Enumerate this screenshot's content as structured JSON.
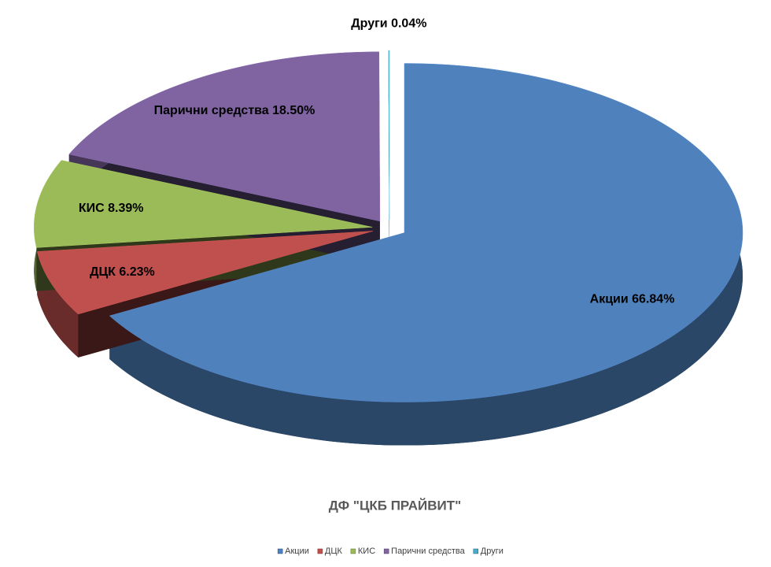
{
  "chart_data": {
    "type": "pie",
    "title": "ДФ \"ЦКБ ПРАЙВИТ\"",
    "categories": [
      "Акции",
      "ДЦК",
      "КИС",
      "Парични средства",
      "Други"
    ],
    "values": [
      66.84,
      6.23,
      8.39,
      18.5,
      0.04
    ],
    "value_labels": [
      "Акции 66.84%",
      "ДЦК 6.23%",
      "КИС 8.39%",
      "Парични средства 18.50%",
      "Други 0.04%"
    ],
    "colors": [
      "#4f81bd",
      "#c0504d",
      "#9bbb59",
      "#8064a2",
      "#4bacc6"
    ],
    "legend": "bottom"
  }
}
